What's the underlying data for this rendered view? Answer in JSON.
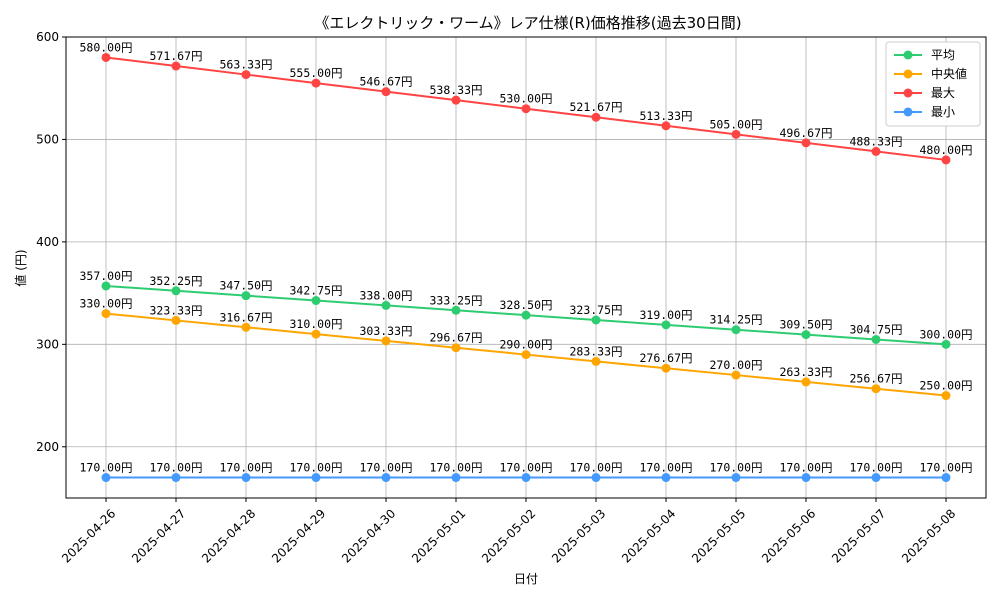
{
  "chart_data": {
    "type": "line",
    "title": "《エレクトリック・ワーム》レア仕様(R)価格推移(過去30日間)",
    "xlabel": "日付",
    "ylabel": "値 (円)",
    "ylim": [
      150,
      600
    ],
    "yticks": [
      200,
      300,
      400,
      500,
      600
    ],
    "grid": true,
    "legend_position": "top-right",
    "label_suffix": "円",
    "x": [
      "2025-04-26",
      "2025-04-27",
      "2025-04-28",
      "2025-04-29",
      "2025-04-30",
      "2025-05-01",
      "2025-05-02",
      "2025-05-03",
      "2025-05-04",
      "2025-05-05",
      "2025-05-06",
      "2025-05-07",
      "2025-05-08"
    ],
    "series": [
      {
        "name": "平均",
        "color": "#2ecc71",
        "values": [
          357.0,
          352.25,
          347.5,
          342.75,
          338.0,
          333.25,
          328.5,
          323.75,
          319.0,
          314.25,
          309.5,
          304.75,
          300.0
        ]
      },
      {
        "name": "中央値",
        "color": "#ffa500",
        "values": [
          330.0,
          323.33,
          316.67,
          310.0,
          303.33,
          296.67,
          290.0,
          283.33,
          276.67,
          270.0,
          263.33,
          256.67,
          250.0
        ]
      },
      {
        "name": "最大",
        "color": "#ff4444",
        "values": [
          580.0,
          571.67,
          563.33,
          555.0,
          546.67,
          538.33,
          530.0,
          521.67,
          513.33,
          505.0,
          496.67,
          488.33,
          480.0
        ]
      },
      {
        "name": "最小",
        "color": "#4499ff",
        "values": [
          170.0,
          170.0,
          170.0,
          170.0,
          170.0,
          170.0,
          170.0,
          170.0,
          170.0,
          170.0,
          170.0,
          170.0,
          170.0
        ]
      }
    ]
  }
}
